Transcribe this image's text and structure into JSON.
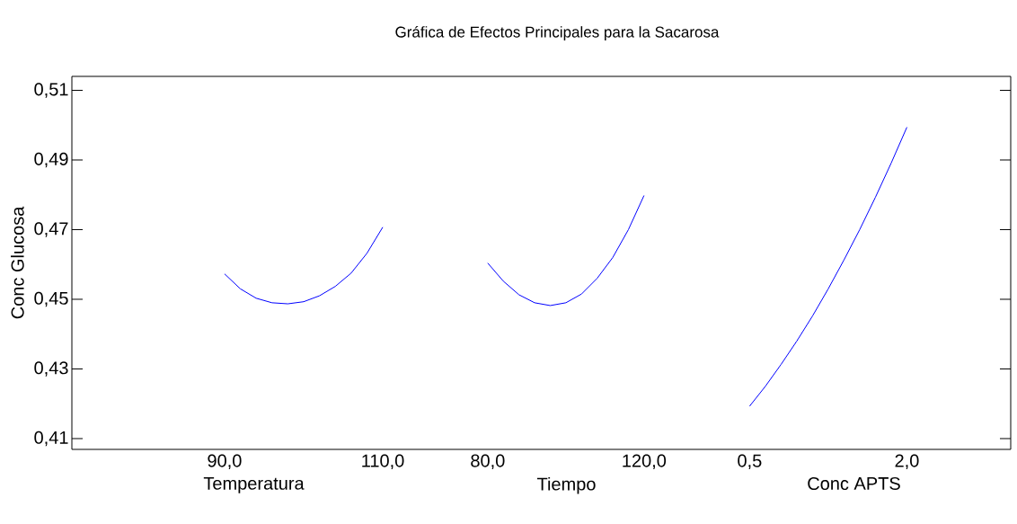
{
  "chart_data": [
    {
      "type": "line",
      "ylabel": "Conc Glucosa",
      "xlabel": "Temperatura",
      "xlim": [
        70.7,
        116.7
      ],
      "xticks": [
        {
          "value": 90,
          "label": "90,0"
        },
        {
          "value": 110,
          "label": "110,0"
        }
      ],
      "ylim": [
        0.4069,
        0.514
      ],
      "yticks": [
        {
          "value": 0.41,
          "label": "0,41"
        },
        {
          "value": 0.43,
          "label": "0,43"
        },
        {
          "value": 0.45,
          "label": "0,45"
        },
        {
          "value": 0.47,
          "label": "0,47"
        },
        {
          "value": 0.49,
          "label": "0,49"
        },
        {
          "value": 0.51,
          "label": "0,51"
        }
      ],
      "marker": "none",
      "line_style": "solid",
      "series": [
        {
          "color": "#0000ff",
          "x": [
            90,
            92,
            94,
            96,
            98,
            100,
            102,
            104,
            106,
            108,
            110
          ],
          "values": [
            0.4573,
            0.453,
            0.4503,
            0.449,
            0.4487,
            0.4493,
            0.451,
            0.4537,
            0.4575,
            0.4632,
            0.4707
          ]
        }
      ]
    },
    {
      "type": "line",
      "title": "Gráfica de Efectos Principales para la Sacarosa",
      "xlabel": "Tiempo",
      "tick_labels": "x",
      "xlim": [
        66.7,
        133.6
      ],
      "xticks": [
        {
          "value": 80,
          "label": "80,0"
        },
        {
          "value": 120,
          "label": "120,0"
        }
      ],
      "ylim": [
        0.4069,
        0.514
      ],
      "marker": "none",
      "line_style": "solid",
      "series": [
        {
          "color": "#0000ff",
          "x": [
            80,
            84,
            88,
            92,
            96,
            100,
            104,
            108,
            112,
            116,
            120
          ],
          "values": [
            0.4604,
            0.4552,
            0.4513,
            0.449,
            0.4482,
            0.449,
            0.4515,
            0.456,
            0.462,
            0.47,
            0.4798
          ]
        }
      ]
    },
    {
      "type": "line",
      "xlabel": "Conc APTS",
      "tick_labels": "x",
      "xlim": [
        0.0,
        2.99
      ],
      "xticks": [
        {
          "value": 0.5,
          "label": "0,5"
        },
        {
          "value": 2.0,
          "label": "2,0"
        }
      ],
      "ylim": [
        0.4069,
        0.514
      ],
      "yticks": [
        {
          "value": 0.41,
          "label": null
        },
        {
          "value": 0.43,
          "label": null
        },
        {
          "value": 0.45,
          "label": null
        },
        {
          "value": 0.47,
          "label": null
        },
        {
          "value": 0.49,
          "label": null
        },
        {
          "value": 0.51,
          "label": null
        }
      ],
      "marker": "none",
      "line_style": "solid",
      "series": [
        {
          "color": "#0000ff",
          "x": [
            0.5,
            0.65,
            0.8,
            0.95,
            1.1,
            1.25,
            1.4,
            1.55,
            1.7,
            1.85,
            2.0
          ],
          "values": [
            0.4193,
            0.425,
            0.4313,
            0.438,
            0.4452,
            0.453,
            0.4613,
            0.47,
            0.4793,
            0.4891,
            0.4994
          ]
        }
      ]
    }
  ]
}
